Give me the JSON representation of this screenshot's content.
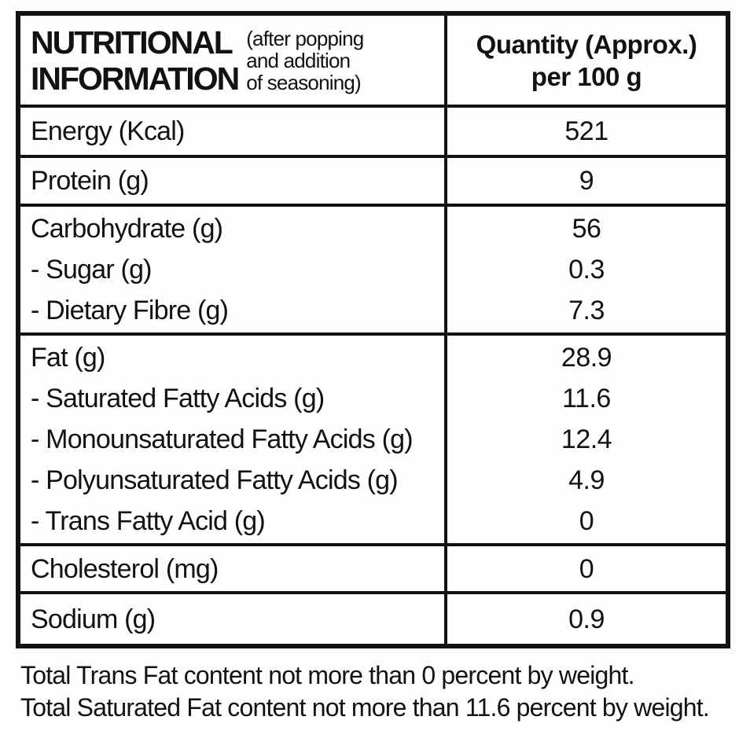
{
  "colors": {
    "border": "#121212",
    "text": "#121212",
    "background": "#fdfdfd"
  },
  "table": {
    "header": {
      "title_line1": "NUTRITIONAL",
      "title_line2": "INFORMATION",
      "subtitle_lines": [
        "(after popping",
        "and addition",
        "of seasoning)"
      ],
      "qty_line1": "Quantity (Approx.)",
      "qty_line2": "per 100 g"
    },
    "rows": [
      {
        "name": "energy",
        "lines": [
          {
            "label": "Energy (Kcal)",
            "value": "521"
          }
        ]
      },
      {
        "name": "protein",
        "lines": [
          {
            "label": "Protein (g)",
            "value": "9"
          }
        ]
      },
      {
        "name": "carbohydrate",
        "lines": [
          {
            "label": "Carbohydrate (g)",
            "value": "56"
          },
          {
            "label": "- Sugar (g)",
            "value": "0.3"
          },
          {
            "label": "- Dietary Fibre (g)",
            "value": "7.3"
          }
        ]
      },
      {
        "name": "fat",
        "lines": [
          {
            "label": "Fat (g)",
            "value": "28.9"
          },
          {
            "label": "- Saturated Fatty Acids (g)",
            "value": "11.6"
          },
          {
            "label": "- Monounsaturated Fatty Acids (g)",
            "value": "12.4"
          },
          {
            "label": "- Polyunsaturated Fatty Acids (g)",
            "value": "4.9"
          },
          {
            "label": "- Trans Fatty Acid (g)",
            "value": "0"
          }
        ]
      },
      {
        "name": "cholesterol",
        "lines": [
          {
            "label": "Cholesterol (mg)",
            "value": "0"
          }
        ]
      },
      {
        "name": "sodium",
        "lines": [
          {
            "label": "Sodium (g)",
            "value": "0.9"
          }
        ]
      }
    ]
  },
  "footnotes": [
    "Total Trans Fat content not more than 0 percent by weight.",
    "Total Saturated Fat content not more than 11.6 percent by weight."
  ]
}
